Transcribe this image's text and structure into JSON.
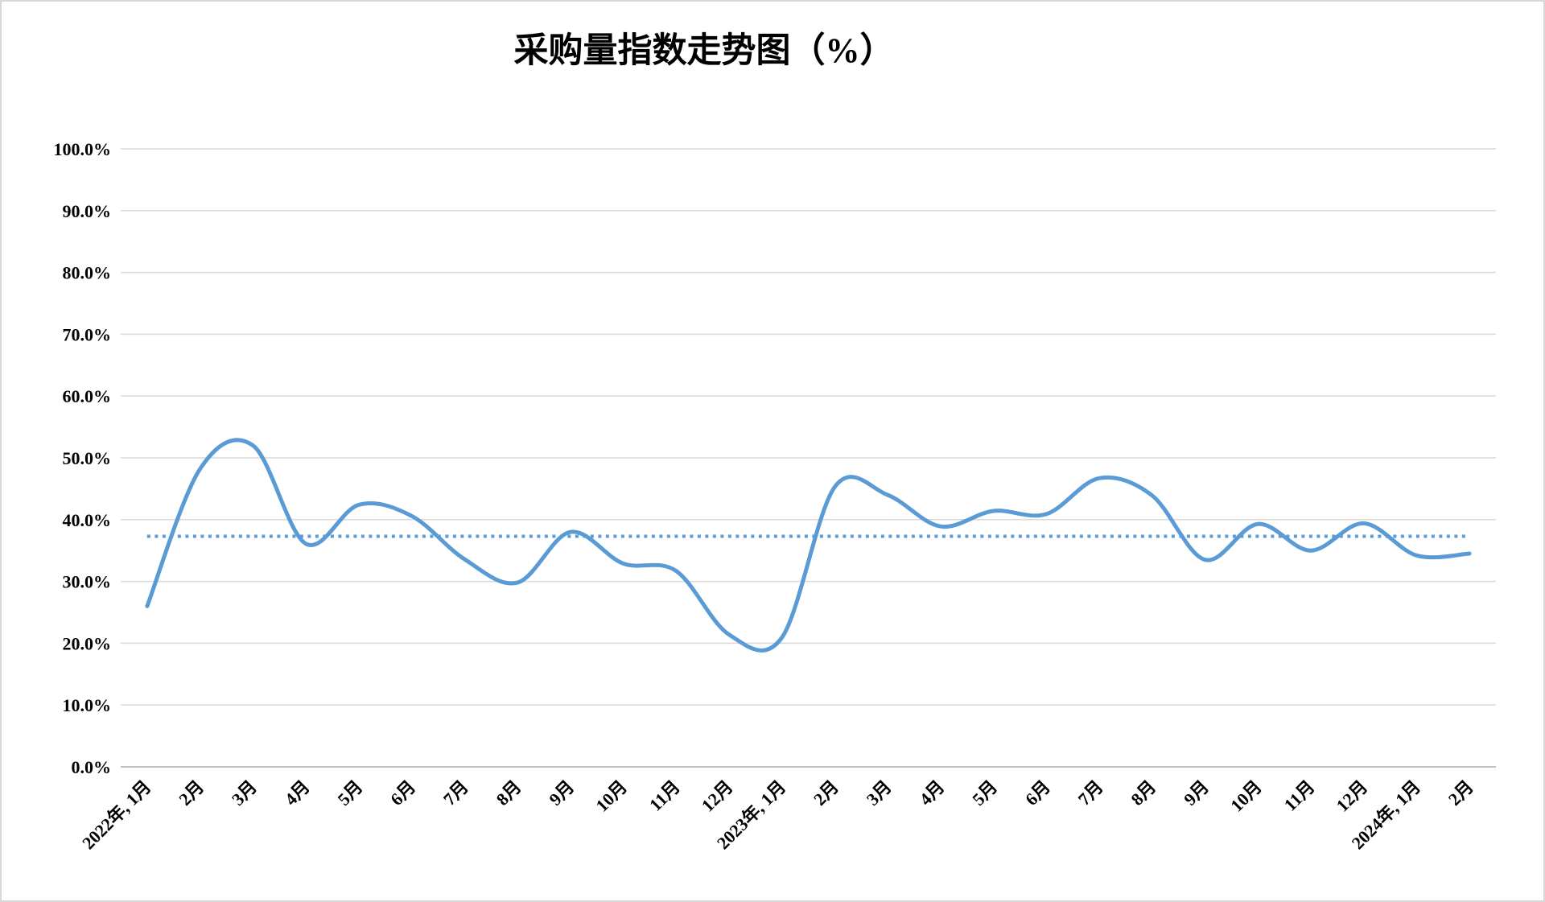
{
  "page": {
    "background_color": "#ffffff",
    "frame_border_color": "#d7d7d7"
  },
  "chart_data": {
    "type": "line",
    "title": "采购量指数走势图（%）",
    "xlabel": "",
    "ylabel": "",
    "legend": "none",
    "grid": "horizontal",
    "gridline_color": "#d9d9d9",
    "axis_line_color": "#bfbfbf",
    "ylim": [
      0,
      100
    ],
    "y_tick_values": [
      0,
      10,
      20,
      30,
      40,
      50,
      60,
      70,
      80,
      90,
      100
    ],
    "y_tick_labels": [
      "0.0%",
      "10.0%",
      "20.0%",
      "30.0%",
      "40.0%",
      "50.0%",
      "60.0%",
      "70.0%",
      "80.0%",
      "90.0%",
      "100.0%"
    ],
    "categories": [
      "2022年, 1月",
      "2月",
      "3月",
      "4月",
      "5月",
      "6月",
      "7月",
      "8月",
      "9月",
      "10月",
      "11月",
      "12月",
      "2023年, 1月",
      "2月",
      "3月",
      "4月",
      "5月",
      "6月",
      "7月",
      "8月",
      "9月",
      "10月",
      "11月",
      "12月",
      "2024年, 1月",
      "2月"
    ],
    "series": [
      {
        "name": "采购量指数",
        "style": "smooth-line",
        "color": "#5b9bd5",
        "stroke_width": 5,
        "values": [
          26.0,
          48.2,
          52.0,
          36.1,
          42.4,
          40.6,
          33.6,
          29.8,
          38.0,
          32.9,
          31.7,
          21.4,
          20.9,
          45.3,
          44.0,
          38.9,
          41.4,
          40.9,
          46.7,
          43.9,
          33.5,
          39.3,
          35.0,
          39.4,
          34.2,
          34.5
        ]
      }
    ],
    "reference_line": {
      "style": "dotted-horizontal",
      "color": "#5b9bd5",
      "value": 37.3
    }
  }
}
